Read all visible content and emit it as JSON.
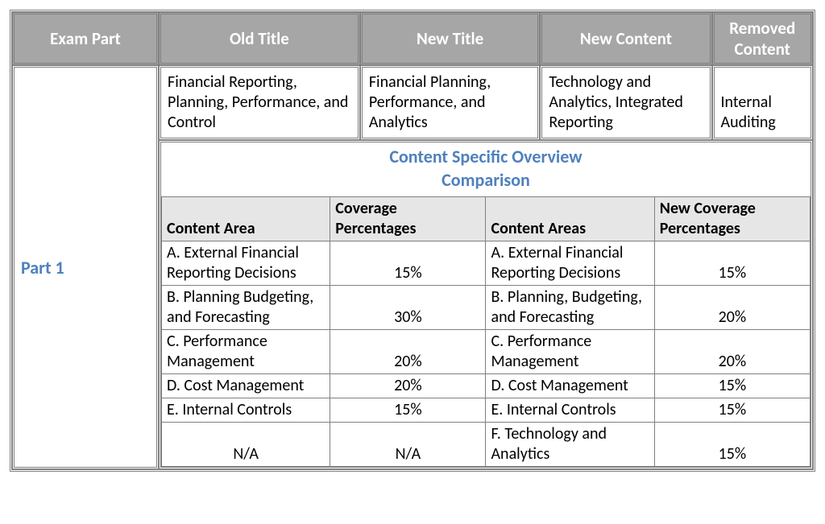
{
  "header": {
    "exam_part": "Exam Part",
    "old_title": "Old Title",
    "new_title": "New Title",
    "new_content": "New Content",
    "removed_content": "Removed Content"
  },
  "row1": {
    "old_title_text": "Financial Reporting, Planning, Performance, and Control",
    "new_title_text": "Financial Planning, Performance, and Analytics",
    "new_content_text": "Technology and Analytics, Integrated Reporting",
    "removed_content_text": "Internal Auditing"
  },
  "part_label": "Part 1",
  "subtitle_line1": "Content Specific Overview",
  "subtitle_line2": "Comparison",
  "inner_headers": {
    "content_area": "Content Area",
    "coverage_pct": "Coverage Percentages",
    "content_areas": "Content Areas",
    "new_coverage_pct": "New Coverage Percentages"
  },
  "inner_rows": [
    {
      "old_area": "A. External Financial Reporting Decisions",
      "old_pct": "15%",
      "new_area": "A. External Financial Reporting Decisions",
      "new_pct": "15%"
    },
    {
      "old_area": "B. Planning Budgeting, and Forecasting",
      "old_pct": "30%",
      "new_area": "B. Planning, Budgeting, and Forecasting",
      "new_pct": "20%"
    },
    {
      "old_area": "C. Performance Management",
      "old_pct": "20%",
      "new_area": "C. Performance Management",
      "new_pct": "20%"
    },
    {
      "old_area": "D. Cost Management",
      "old_pct": "20%",
      "new_area": "D. Cost Management",
      "new_pct": "15%"
    },
    {
      "old_area": "E. Internal Controls",
      "old_pct": "15%",
      "new_area": "E. Internal Controls",
      "new_pct": "15%"
    },
    {
      "old_area": "N/A",
      "old_pct": "N/A",
      "new_area": "F. Technology and Analytics",
      "new_pct": "15%",
      "old_center": true
    }
  ]
}
